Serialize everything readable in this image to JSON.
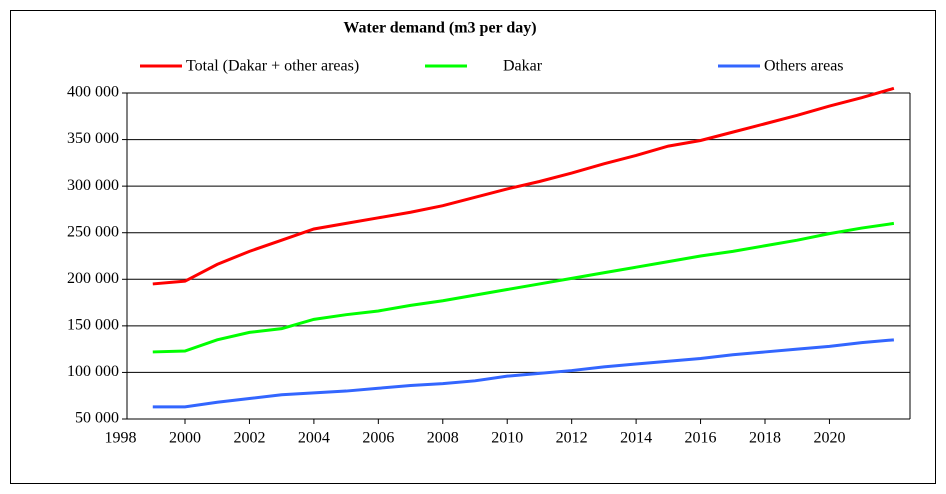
{
  "chart_data": {
    "type": "line",
    "title": "Water demand  (m3 per day)",
    "x": [
      1999,
      2000,
      2001,
      2002,
      2003,
      2004,
      2005,
      2006,
      2007,
      2008,
      2009,
      2010,
      2011,
      2012,
      2013,
      2014,
      2015,
      2016,
      2017,
      2018,
      2019,
      2020,
      2021,
      2022
    ],
    "series": [
      {
        "name": "Total (Dakar + other areas)",
        "color": "#ff0000",
        "values": [
          195000,
          198000,
          216000,
          230000,
          242000,
          254000,
          260000,
          266000,
          272000,
          279000,
          288000,
          297000,
          305000,
          314000,
          324000,
          333000,
          343000,
          349000,
          358000,
          367000,
          376000,
          386000,
          395000,
          405000
        ]
      },
      {
        "name": "Dakar",
        "color": "#00ff00",
        "values": [
          122000,
          123000,
          135000,
          143000,
          147000,
          157000,
          162000,
          166000,
          172000,
          177000,
          183000,
          189000,
          195000,
          201000,
          207000,
          213000,
          219000,
          225000,
          230000,
          236000,
          242000,
          249000,
          255000,
          260000
        ]
      },
      {
        "name": "Others areas",
        "color": "#3366ff",
        "values": [
          63000,
          63000,
          68000,
          72000,
          76000,
          78000,
          80000,
          83000,
          86000,
          88000,
          91000,
          96000,
          99000,
          102000,
          106000,
          109000,
          112000,
          115000,
          119000,
          122000,
          125000,
          128000,
          132000,
          135000
        ]
      }
    ],
    "xlim": [
      1998.2,
      2022.5
    ],
    "xticks": [
      1998,
      2000,
      2002,
      2004,
      2006,
      2008,
      2010,
      2012,
      2014,
      2016,
      2018,
      2020
    ],
    "ylim": [
      50000,
      400000
    ],
    "yticks": [
      {
        "value": 50000,
        "label": "50 000"
      },
      {
        "value": 100000,
        "label": "100 000"
      },
      {
        "value": 150000,
        "label": "150 000"
      },
      {
        "value": 200000,
        "label": "200 000"
      },
      {
        "value": 250000,
        "label": "250 000"
      },
      {
        "value": 300000,
        "label": "300 000"
      },
      {
        "value": 350000,
        "label": "350 000"
      },
      {
        "value": 400000,
        "label": "400 000"
      }
    ],
    "grid": true
  }
}
